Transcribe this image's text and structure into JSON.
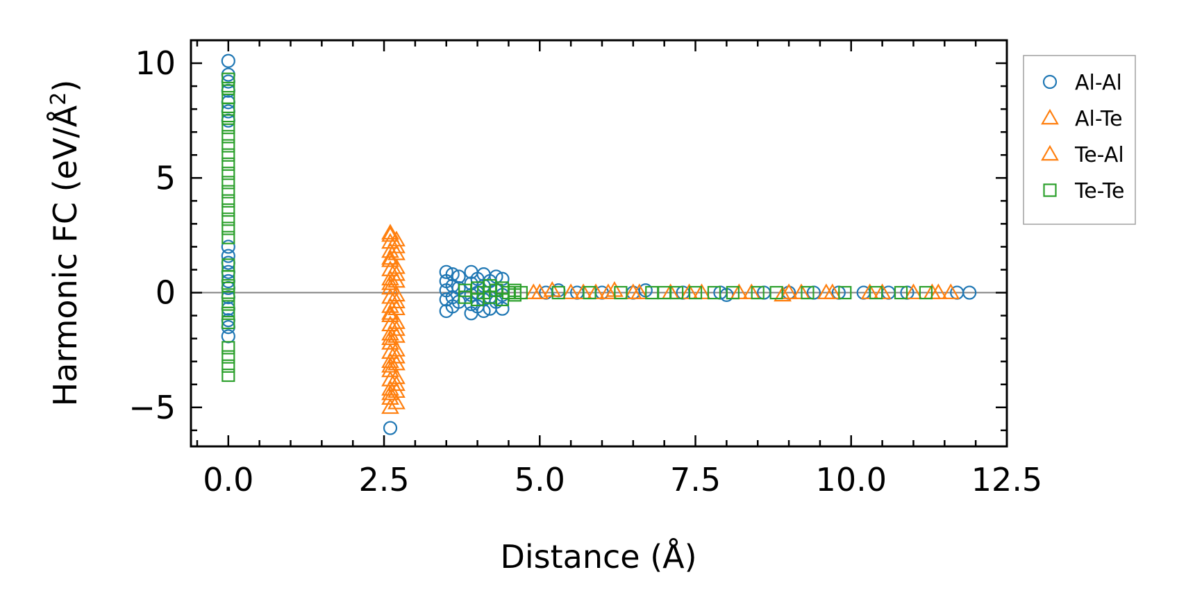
{
  "chart_data": {
    "type": "scatter",
    "title": "",
    "xlabel": "Distance (Å)",
    "ylabel": "Harmonic FC (eV/Å²)",
    "ylabel_parts": {
      "main": "Harmonic FC (eV/Å",
      "sup": "2",
      "end": ")"
    },
    "xlim": [
      -0.6,
      12.5
    ],
    "ylim": [
      -6.7,
      11.0
    ],
    "x_ticks": [
      0.0,
      2.5,
      5.0,
      7.5,
      10.0,
      12.5
    ],
    "x_tick_labels": [
      "0.0",
      "2.5",
      "5.0",
      "7.5",
      "10.0",
      "12.5"
    ],
    "y_ticks": [
      -5,
      0,
      5,
      10
    ],
    "y_tick_labels": [
      "−5",
      "0",
      "5",
      "10"
    ],
    "zero_line": 0,
    "legend_position": "outside-right-top",
    "series": [
      {
        "name": "Al-Al",
        "marker": "circle",
        "color": "#1f77b4",
        "points": [
          [
            0.0,
            10.1
          ],
          [
            0.0,
            9.5
          ],
          [
            0.0,
            9.2
          ],
          [
            0.0,
            8.8
          ],
          [
            0.0,
            8.3
          ],
          [
            0.0,
            7.9
          ],
          [
            0.0,
            7.5
          ],
          [
            0.0,
            2.0
          ],
          [
            0.0,
            1.6
          ],
          [
            0.0,
            1.3
          ],
          [
            0.0,
            0.9
          ],
          [
            0.0,
            0.5
          ],
          [
            0.0,
            0.2
          ],
          [
            0.0,
            -0.2
          ],
          [
            0.0,
            -0.7
          ],
          [
            0.0,
            -1.2
          ],
          [
            0.0,
            -1.5
          ],
          [
            0.0,
            -1.9
          ],
          [
            2.6,
            -5.9
          ],
          [
            3.5,
            0.9
          ],
          [
            3.5,
            0.5
          ],
          [
            3.5,
            0.1
          ],
          [
            3.5,
            -0.3
          ],
          [
            3.5,
            -0.8
          ],
          [
            3.6,
            0.8
          ],
          [
            3.6,
            0.3
          ],
          [
            3.6,
            -0.2
          ],
          [
            3.6,
            -0.6
          ],
          [
            3.7,
            0.7
          ],
          [
            3.7,
            0.2
          ],
          [
            3.7,
            -0.4
          ],
          [
            3.9,
            0.9
          ],
          [
            3.9,
            0.4
          ],
          [
            3.9,
            -0.1
          ],
          [
            3.9,
            -0.5
          ],
          [
            3.9,
            -0.9
          ],
          [
            4.0,
            0.6
          ],
          [
            4.0,
            0.0
          ],
          [
            4.0,
            -0.6
          ],
          [
            4.1,
            0.8
          ],
          [
            4.1,
            0.3
          ],
          [
            4.1,
            -0.3
          ],
          [
            4.1,
            -0.8
          ],
          [
            4.2,
            0.5
          ],
          [
            4.2,
            -0.2
          ],
          [
            4.2,
            -0.7
          ],
          [
            4.3,
            0.7
          ],
          [
            4.3,
            0.1
          ],
          [
            4.3,
            -0.4
          ],
          [
            4.4,
            0.6
          ],
          [
            4.4,
            -0.1
          ],
          [
            4.4,
            -0.7
          ],
          [
            5.1,
            0.0
          ],
          [
            5.3,
            0.1
          ],
          [
            5.6,
            0.0
          ],
          [
            6.0,
            0.0
          ],
          [
            6.5,
            0.0
          ],
          [
            6.7,
            0.1
          ],
          [
            7.3,
            0.0
          ],
          [
            7.9,
            0.0
          ],
          [
            8.0,
            -0.1
          ],
          [
            8.6,
            0.0
          ],
          [
            9.0,
            0.0
          ],
          [
            9.4,
            0.0
          ],
          [
            9.8,
            0.0
          ],
          [
            10.2,
            0.0
          ],
          [
            10.6,
            0.0
          ],
          [
            10.9,
            0.0
          ],
          [
            11.7,
            0.0
          ],
          [
            11.9,
            0.0
          ]
        ]
      },
      {
        "name": "Al-Te",
        "marker": "triangle",
        "color": "#ff7f0e",
        "points": [
          [
            2.6,
            2.6
          ],
          [
            2.6,
            2.2
          ],
          [
            2.6,
            1.8
          ],
          [
            2.6,
            1.4
          ],
          [
            2.6,
            1.0
          ],
          [
            2.6,
            0.6
          ],
          [
            2.6,
            0.2
          ],
          [
            2.6,
            -0.2
          ],
          [
            2.6,
            -0.6
          ],
          [
            2.6,
            -1.0
          ],
          [
            2.6,
            -1.4
          ],
          [
            2.6,
            -1.8
          ],
          [
            2.6,
            -2.2
          ],
          [
            2.6,
            -2.6
          ],
          [
            2.6,
            -3.0
          ],
          [
            2.6,
            -3.4
          ],
          [
            2.6,
            -3.8
          ],
          [
            2.6,
            -4.2
          ],
          [
            2.6,
            -4.6
          ],
          [
            2.6,
            -5.0
          ],
          [
            2.7,
            2.3
          ],
          [
            2.7,
            1.7
          ],
          [
            2.7,
            1.1
          ],
          [
            2.7,
            0.5
          ],
          [
            2.7,
            -0.1
          ],
          [
            2.7,
            -0.7
          ],
          [
            2.7,
            -1.3
          ],
          [
            2.7,
            -1.9
          ],
          [
            2.7,
            -2.5
          ],
          [
            2.7,
            -3.1
          ],
          [
            2.7,
            -3.7
          ],
          [
            2.7,
            -4.3
          ],
          [
            2.7,
            -4.8
          ],
          [
            4.9,
            0.0
          ],
          [
            5.2,
            0.1
          ],
          [
            5.5,
            0.0
          ],
          [
            5.9,
            0.0
          ],
          [
            6.2,
            0.1
          ],
          [
            6.5,
            0.0
          ],
          [
            7.1,
            0.0
          ],
          [
            7.6,
            0.0
          ],
          [
            8.2,
            0.0
          ],
          [
            8.9,
            -0.1
          ],
          [
            9.2,
            0.0
          ],
          [
            9.7,
            0.0
          ],
          [
            10.3,
            0.0
          ],
          [
            11.0,
            0.0
          ],
          [
            11.4,
            0.0
          ],
          [
            11.6,
            0.0
          ]
        ]
      },
      {
        "name": "Te-Al",
        "marker": "triangle",
        "color": "#ff7f0e",
        "points": [
          [
            2.6,
            2.5
          ],
          [
            2.6,
            1.5
          ],
          [
            2.6,
            0.4
          ],
          [
            2.6,
            -0.9
          ],
          [
            2.6,
            -2.0
          ],
          [
            2.6,
            -3.2
          ],
          [
            2.6,
            -4.4
          ],
          [
            2.7,
            2.0
          ],
          [
            2.7,
            0.8
          ],
          [
            2.7,
            -0.4
          ],
          [
            2.7,
            -1.6
          ],
          [
            2.7,
            -2.8
          ],
          [
            2.7,
            -4.0
          ],
          [
            5.0,
            0.0
          ],
          [
            5.7,
            0.0
          ],
          [
            6.1,
            0.0
          ],
          [
            6.6,
            0.0
          ],
          [
            7.4,
            0.0
          ],
          [
            8.4,
            0.0
          ],
          [
            9.0,
            0.0
          ],
          [
            9.6,
            0.0
          ],
          [
            10.5,
            0.0
          ],
          [
            11.3,
            0.0
          ]
        ]
      },
      {
        "name": "Te-Te",
        "marker": "square",
        "color": "#2ca02c",
        "points": [
          [
            0.0,
            9.3
          ],
          [
            0.0,
            8.9
          ],
          [
            0.0,
            8.5
          ],
          [
            0.0,
            8.0
          ],
          [
            0.0,
            7.6
          ],
          [
            0.0,
            7.2
          ],
          [
            0.0,
            6.8
          ],
          [
            0.0,
            6.4
          ],
          [
            0.0,
            6.0
          ],
          [
            0.0,
            5.6
          ],
          [
            0.0,
            5.2
          ],
          [
            0.0,
            4.8
          ],
          [
            0.0,
            4.4
          ],
          [
            0.0,
            4.0
          ],
          [
            0.0,
            3.6
          ],
          [
            0.0,
            3.2
          ],
          [
            0.0,
            2.8
          ],
          [
            0.0,
            2.4
          ],
          [
            0.0,
            1.2
          ],
          [
            0.0,
            0.7
          ],
          [
            0.0,
            0.3
          ],
          [
            0.0,
            -0.1
          ],
          [
            0.0,
            -0.5
          ],
          [
            0.0,
            -0.9
          ],
          [
            0.0,
            -1.3
          ],
          [
            0.0,
            -2.4
          ],
          [
            0.0,
            -2.8
          ],
          [
            0.0,
            -3.2
          ],
          [
            0.0,
            -3.6
          ],
          [
            3.8,
            0.1
          ],
          [
            3.8,
            -0.2
          ],
          [
            4.0,
            0.2
          ],
          [
            4.0,
            -0.3
          ],
          [
            4.1,
            0.0
          ],
          [
            4.2,
            0.3
          ],
          [
            4.2,
            -0.2
          ],
          [
            4.3,
            0.1
          ],
          [
            4.4,
            0.2
          ],
          [
            4.4,
            -0.3
          ],
          [
            4.5,
            0.0
          ],
          [
            4.6,
            0.1
          ],
          [
            4.6,
            -0.1
          ],
          [
            4.7,
            0.0
          ],
          [
            5.3,
            0.0
          ],
          [
            5.8,
            0.0
          ],
          [
            6.3,
            0.0
          ],
          [
            6.8,
            0.0
          ],
          [
            7.0,
            0.0
          ],
          [
            7.2,
            0.0
          ],
          [
            7.5,
            0.0
          ],
          [
            7.8,
            0.0
          ],
          [
            8.1,
            0.0
          ],
          [
            8.5,
            0.0
          ],
          [
            8.8,
            0.0
          ],
          [
            9.3,
            0.0
          ],
          [
            9.9,
            0.0
          ],
          [
            10.4,
            0.0
          ],
          [
            10.8,
            0.0
          ],
          [
            11.2,
            0.0
          ]
        ]
      }
    ]
  }
}
